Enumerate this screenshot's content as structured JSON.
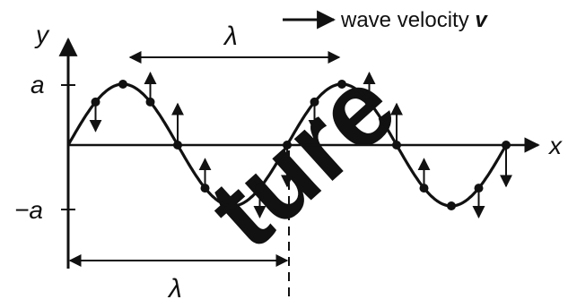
{
  "labels": {
    "y_axis": "y",
    "x_axis": "x",
    "amplitude_pos": "a",
    "amplitude_neg": "−a",
    "wavelength_top": "λ",
    "wavelength_bottom": "λ",
    "velocity_text": "wave velocity ",
    "velocity_symbol": "v"
  },
  "wave": {
    "wavelengths_shown": 2,
    "particle_phases": [
      0.125,
      0.25,
      0.375,
      0.5,
      0.625,
      0.75,
      0.875,
      1.0,
      1.125,
      1.25,
      1.375,
      1.5,
      1.625,
      1.75,
      1.875,
      2.0
    ]
  },
  "watermark": "ture",
  "colors": {
    "ink": "#111111",
    "watermark": "#e2e2e2"
  }
}
